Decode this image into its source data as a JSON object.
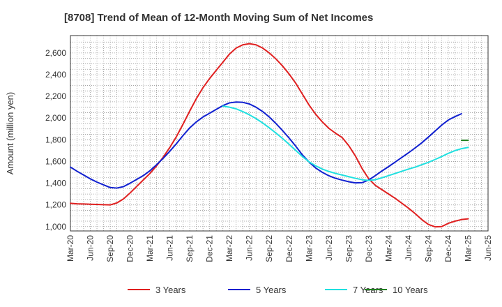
{
  "chart_data": {
    "type": "line",
    "title": "[8708]  Trend of Mean of 12-Month Moving Sum of Net Incomes",
    "xlabel": "",
    "ylabel": "Amount (million yen)",
    "ylim": [
      960,
      2760
    ],
    "y_ticks": [
      1000,
      1200,
      1400,
      1600,
      1800,
      2000,
      2200,
      2400,
      2600
    ],
    "y_tick_labels": [
      "1,000",
      "1,200",
      "1,400",
      "1,600",
      "1,800",
      "2,000",
      "2,200",
      "2,400",
      "2,600"
    ],
    "x_tick_labels": [
      "Mar-20",
      "Jun-20",
      "Sep-20",
      "Dec-20",
      "Mar-21",
      "Jun-21",
      "Sep-21",
      "Dec-21",
      "Mar-22",
      "Jun-22",
      "Sep-22",
      "Dec-22",
      "Mar-23",
      "Jun-23",
      "Sep-23",
      "Dec-23",
      "Mar-24",
      "Jun-24",
      "Sep-24",
      "Dec-24",
      "Mar-25",
      "Jun-25"
    ],
    "grid": true,
    "legend_position": "bottom",
    "series": [
      {
        "name": "3 Years",
        "color": "#e02020",
        "start_index": 0,
        "values": [
          1215,
          1210,
          1208,
          1206,
          1204,
          1202,
          1200,
          1218,
          1255,
          1310,
          1370,
          1430,
          1490,
          1560,
          1640,
          1730,
          1830,
          1945,
          2065,
          2180,
          2280,
          2365,
          2440,
          2515,
          2590,
          2645,
          2675,
          2685,
          2675,
          2645,
          2600,
          2545,
          2480,
          2405,
          2320,
          2220,
          2120,
          2035,
          1965,
          1905,
          1860,
          1820,
          1745,
          1650,
          1535,
          1440,
          1380,
          1340,
          1300,
          1260,
          1215,
          1170,
          1120,
          1065,
          1020,
          998,
          1000,
          1030,
          1050,
          1065,
          1072
        ]
      },
      {
        "name": "5 Years",
        "color": "#1020d0",
        "start_index": 0,
        "values": [
          1548,
          1510,
          1475,
          1440,
          1410,
          1385,
          1360,
          1355,
          1368,
          1400,
          1435,
          1470,
          1515,
          1570,
          1630,
          1695,
          1765,
          1840,
          1910,
          1965,
          2010,
          2045,
          2080,
          2115,
          2140,
          2148,
          2145,
          2130,
          2100,
          2060,
          2010,
          1950,
          1885,
          1815,
          1740,
          1660,
          1595,
          1540,
          1500,
          1468,
          1445,
          1428,
          1413,
          1403,
          1405,
          1430,
          1470,
          1513,
          1553,
          1595,
          1638,
          1680,
          1725,
          1772,
          1825,
          1880,
          1935,
          1982,
          2013,
          2040
        ]
      },
      {
        "name": "7 Years",
        "color": "#20e0e0",
        "start_index": 23,
        "values": [
          2110,
          2100,
          2085,
          2060,
          2030,
          1995,
          1955,
          1910,
          1862,
          1812,
          1758,
          1702,
          1645,
          1597,
          1560,
          1530,
          1508,
          1490,
          1475,
          1460,
          1445,
          1432,
          1425,
          1432,
          1450,
          1470,
          1490,
          1510,
          1530,
          1548,
          1570,
          1592,
          1618,
          1645,
          1675,
          1700,
          1718,
          1730
        ]
      },
      {
        "name": "10 Years",
        "color": "#208020",
        "start_index": 59,
        "values": [
          1795,
          1795
        ]
      }
    ]
  }
}
